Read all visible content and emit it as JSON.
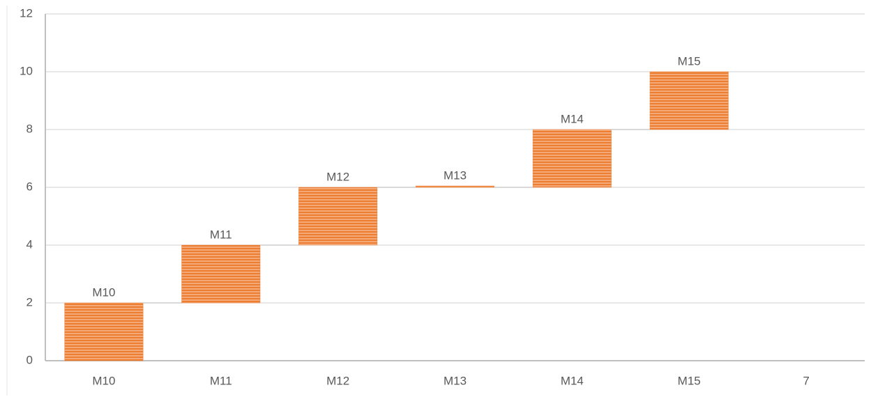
{
  "chart_data": {
    "type": "waterfall",
    "categories": [
      "M10",
      "M11",
      "M12",
      "M13",
      "M14",
      "M15",
      "7"
    ],
    "values": [
      2,
      2,
      2,
      0,
      2,
      2,
      null
    ],
    "color": "#ed7d31",
    "ylim": [
      0,
      12
    ],
    "yticks": [
      0,
      2,
      4,
      6,
      8,
      10,
      12
    ],
    "grid": true
  }
}
